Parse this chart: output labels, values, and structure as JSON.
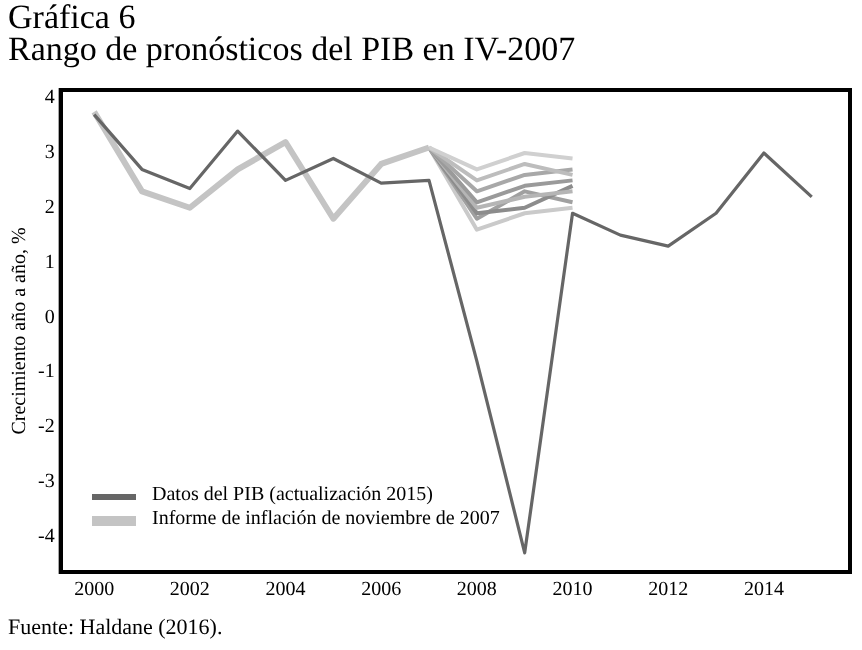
{
  "chart_data": {
    "type": "line",
    "title": "Gráfica 6",
    "subtitle": "Rango de pronósticos del PIB en IV-2007",
    "ylabel": "Crecimiento año a año, %",
    "x": [
      2000,
      2001,
      2002,
      2003,
      2004,
      2005,
      2006,
      2007,
      2008,
      2009,
      2010,
      2011,
      2012,
      2013,
      2014,
      2015
    ],
    "series": [
      {
        "name": "Datos del PIB (actualización 2015)",
        "color": "#666666",
        "values": [
          3.7,
          2.7,
          2.35,
          3.4,
          2.5,
          2.9,
          2.45,
          2.5,
          -0.8,
          -4.3,
          1.9,
          1.5,
          1.3,
          1.9,
          3.0,
          2.2
        ]
      },
      {
        "name": "Informe de inflación de noviembre de 2007",
        "color": "#c4c4c4",
        "x": [
          2000,
          2001,
          2002,
          2003,
          2004,
          2005,
          2006,
          2007
        ],
        "values": [
          3.75,
          2.3,
          2.0,
          2.7,
          3.2,
          1.8,
          2.8,
          3.1
        ]
      },
      {
        "color": "#d0d0d0",
        "x": [
          2007,
          2008,
          2009,
          2010
        ],
        "values": [
          3.1,
          2.7,
          3.0,
          2.9
        ]
      },
      {
        "color": "#bdbdbd",
        "x": [
          2007,
          2008,
          2009,
          2010
        ],
        "values": [
          3.1,
          2.5,
          2.8,
          2.6
        ]
      },
      {
        "color": "#a8a8a8",
        "x": [
          2007,
          2008,
          2009,
          2010
        ],
        "values": [
          3.1,
          2.3,
          2.6,
          2.7
        ]
      },
      {
        "color": "#9a9a9a",
        "x": [
          2007,
          2008,
          2009,
          2010
        ],
        "values": [
          3.1,
          2.1,
          2.4,
          2.5
        ]
      },
      {
        "color": "#b5b5b5",
        "x": [
          2007,
          2008,
          2009,
          2010
        ],
        "values": [
          3.1,
          2.0,
          2.2,
          2.3
        ]
      },
      {
        "color": "#8c8c8c",
        "x": [
          2007,
          2008,
          2009,
          2010
        ],
        "values": [
          3.1,
          1.9,
          2.0,
          2.4
        ]
      },
      {
        "color": "#a0a0a0",
        "x": [
          2007,
          2008,
          2009,
          2010
        ],
        "values": [
          3.1,
          1.8,
          2.3,
          2.1
        ]
      },
      {
        "color": "#cacaca",
        "x": [
          2007,
          2008,
          2009,
          2010
        ],
        "values": [
          3.1,
          1.6,
          1.9,
          2.0
        ]
      }
    ],
    "xlim": [
      1999.3,
      2015.8
    ],
    "xticks": [
      2000,
      2002,
      2004,
      2006,
      2008,
      2010,
      2012,
      2014
    ],
    "ylim": [
      -4.65,
      4.15
    ],
    "yticks": [
      -4,
      -3,
      -2,
      -1,
      0,
      1,
      2,
      3,
      4
    ],
    "grid": false,
    "legend": "bottom left",
    "marker": "none",
    "line_style": "solid",
    "annotations": [
      "Fuente: Haldane (2016)."
    ]
  }
}
